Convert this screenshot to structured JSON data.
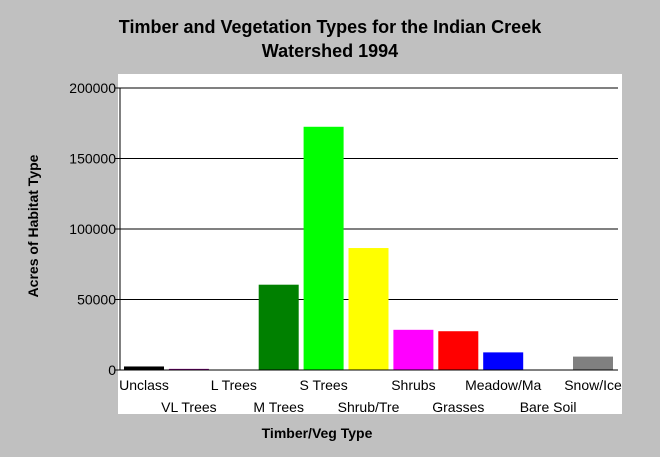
{
  "chart_data": {
    "type": "bar",
    "title": "Timber and Vegetation Types for the Indian Creek Watershed 1994",
    "title_lines": [
      "Timber and Vegetation Types for the Indian Creek",
      "Watershed 1994"
    ],
    "xlabel": "Timber/Veg Type",
    "ylabel": "Acres of Habitat Type",
    "ylim": [
      0,
      200000
    ],
    "yticks": [
      "0",
      "50000",
      "100000",
      "150000",
      "200000"
    ],
    "ytick_values": [
      0,
      50000,
      100000,
      150000,
      200000
    ],
    "grid": "horizontal",
    "legend": "none",
    "categories": [
      "Unclass",
      "VL Trees",
      "L Trees",
      "M Trees",
      "S Trees",
      "Shrub/Tre",
      "Shrubs",
      "Grasses",
      "Meadow/Ma",
      "Bare Soil",
      "Snow/Ice"
    ],
    "values": [
      2500,
      800,
      0,
      60500,
      172500,
      86500,
      28500,
      27500,
      12500,
      0,
      9500
    ],
    "colors": [
      "#000000",
      "#800080",
      "#000080",
      "#008000",
      "#00ff00",
      "#ffff00",
      "#ff00ff",
      "#ff0000",
      "#0000ff",
      "#808080",
      "#808080"
    ]
  },
  "colors": {
    "background": "#c0c0c0",
    "plot_area": "#ffffff",
    "grid": "#000000"
  }
}
